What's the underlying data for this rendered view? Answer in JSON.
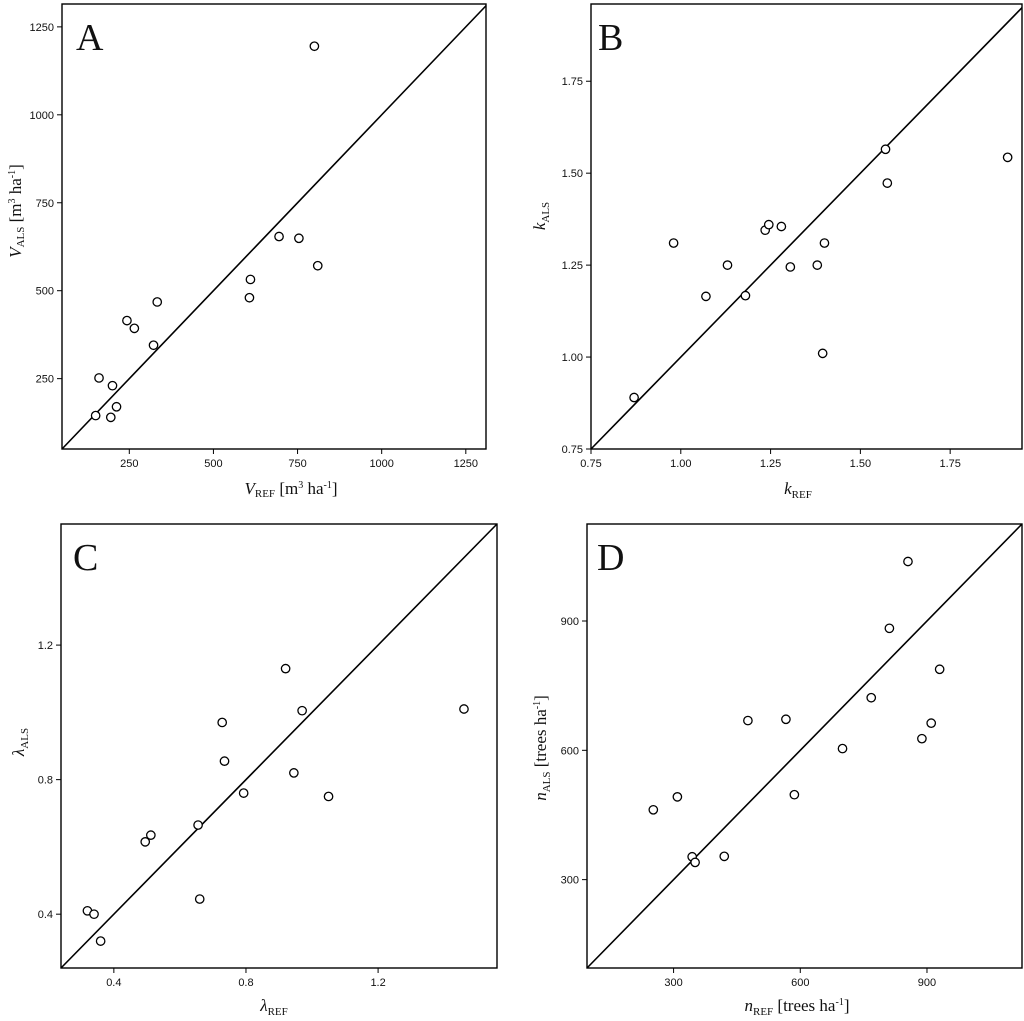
{
  "figure": {
    "panel_letters": [
      "A",
      "B",
      "C",
      "D"
    ]
  },
  "chart_data": [
    {
      "type": "scatter",
      "panel": "A",
      "xlabel": "V_REF [m³ ha⁻¹]",
      "ylabel": "V_ALS [m³ ha⁻¹]",
      "xlim": [
        50,
        1310
      ],
      "ylim": [
        50,
        1315
      ],
      "xticks": [
        250,
        500,
        750,
        1000,
        1250
      ],
      "yticks": [
        250,
        500,
        750,
        1000,
        1250
      ],
      "tick_labels_x": [
        "250",
        "500",
        "750",
        "1000",
        "1250"
      ],
      "tick_labels_y": [
        "250",
        "500",
        "750",
        "1000",
        "1250"
      ],
      "identity_line": true,
      "points": [
        {
          "x": 150,
          "y": 145
        },
        {
          "x": 160,
          "y": 252
        },
        {
          "x": 195,
          "y": 140
        },
        {
          "x": 200,
          "y": 230
        },
        {
          "x": 212,
          "y": 170
        },
        {
          "x": 243,
          "y": 415
        },
        {
          "x": 265,
          "y": 393
        },
        {
          "x": 322,
          "y": 345
        },
        {
          "x": 333,
          "y": 468
        },
        {
          "x": 607,
          "y": 480
        },
        {
          "x": 610,
          "y": 532
        },
        {
          "x": 695,
          "y": 654
        },
        {
          "x": 754,
          "y": 649
        },
        {
          "x": 800,
          "y": 1195
        },
        {
          "x": 810,
          "y": 571
        }
      ]
    },
    {
      "type": "scatter",
      "panel": "B",
      "xlabel": "k_REF",
      "ylabel": "k_ALS",
      "xlim": [
        0.75,
        1.95
      ],
      "ylim": [
        0.75,
        1.96
      ],
      "xticks": [
        0.75,
        1.0,
        1.25,
        1.5,
        1.75
      ],
      "yticks": [
        0.75,
        1.0,
        1.25,
        1.5,
        1.75
      ],
      "tick_labels_x": [
        "0.75",
        "1.00",
        "1.25",
        "1.50",
        "1.75"
      ],
      "tick_labels_y": [
        "0.75",
        "1.00",
        "1.25",
        "1.50",
        "1.75"
      ],
      "identity_line": true,
      "points": [
        {
          "x": 0.87,
          "y": 0.89
        },
        {
          "x": 0.98,
          "y": 1.31
        },
        {
          "x": 1.07,
          "y": 1.165
        },
        {
          "x": 1.13,
          "y": 1.25
        },
        {
          "x": 1.18,
          "y": 1.167
        },
        {
          "x": 1.235,
          "y": 1.345
        },
        {
          "x": 1.245,
          "y": 1.36
        },
        {
          "x": 1.28,
          "y": 1.355
        },
        {
          "x": 1.305,
          "y": 1.245
        },
        {
          "x": 1.38,
          "y": 1.25
        },
        {
          "x": 1.395,
          "y": 1.01
        },
        {
          "x": 1.4,
          "y": 1.31
        },
        {
          "x": 1.57,
          "y": 1.565
        },
        {
          "x": 1.575,
          "y": 1.473
        },
        {
          "x": 1.91,
          "y": 1.543
        }
      ]
    },
    {
      "type": "scatter",
      "panel": "C",
      "xlabel": "λ_REF",
      "ylabel": "λ_ALS",
      "xlim": [
        0.24,
        1.56
      ],
      "ylim": [
        0.24,
        1.56
      ],
      "xticks": [
        0.4,
        0.8,
        1.2
      ],
      "yticks": [
        0.4,
        0.8,
        1.2
      ],
      "tick_labels_x": [
        "0.4",
        "0.8",
        "1.2"
      ],
      "tick_labels_y": [
        "0.4",
        "0.8",
        "1.2"
      ],
      "identity_line": true,
      "points": [
        {
          "x": 0.32,
          "y": 0.41
        },
        {
          "x": 0.34,
          "y": 0.4
        },
        {
          "x": 0.36,
          "y": 0.32
        },
        {
          "x": 0.495,
          "y": 0.615
        },
        {
          "x": 0.512,
          "y": 0.635
        },
        {
          "x": 0.655,
          "y": 0.665
        },
        {
          "x": 0.66,
          "y": 0.445
        },
        {
          "x": 0.728,
          "y": 0.97
        },
        {
          "x": 0.735,
          "y": 0.855
        },
        {
          "x": 0.793,
          "y": 0.76
        },
        {
          "x": 0.92,
          "y": 1.13
        },
        {
          "x": 0.945,
          "y": 0.82
        },
        {
          "x": 0.97,
          "y": 1.005
        },
        {
          "x": 1.05,
          "y": 0.75
        },
        {
          "x": 1.46,
          "y": 1.01
        }
      ]
    },
    {
      "type": "scatter",
      "panel": "D",
      "xlabel": "n_REF [trees ha⁻¹]",
      "ylabel": "n_ALS [trees ha⁻¹]",
      "xlim": [
        95,
        1125
      ],
      "ylim": [
        95,
        1125
      ],
      "xticks": [
        300,
        600,
        900
      ],
      "yticks": [
        300,
        600,
        900
      ],
      "tick_labels_x": [
        "300",
        "600",
        "900"
      ],
      "tick_labels_y": [
        "300",
        "600",
        "900"
      ],
      "identity_line": true,
      "points": [
        {
          "x": 252,
          "y": 462
        },
        {
          "x": 309,
          "y": 492
        },
        {
          "x": 344,
          "y": 353
        },
        {
          "x": 351,
          "y": 340
        },
        {
          "x": 420,
          "y": 354
        },
        {
          "x": 476,
          "y": 669
        },
        {
          "x": 566,
          "y": 672
        },
        {
          "x": 586,
          "y": 497
        },
        {
          "x": 700,
          "y": 604
        },
        {
          "x": 768,
          "y": 722
        },
        {
          "x": 811,
          "y": 883
        },
        {
          "x": 855,
          "y": 1038
        },
        {
          "x": 888,
          "y": 627
        },
        {
          "x": 910,
          "y": 663
        },
        {
          "x": 930,
          "y": 788
        }
      ]
    }
  ]
}
